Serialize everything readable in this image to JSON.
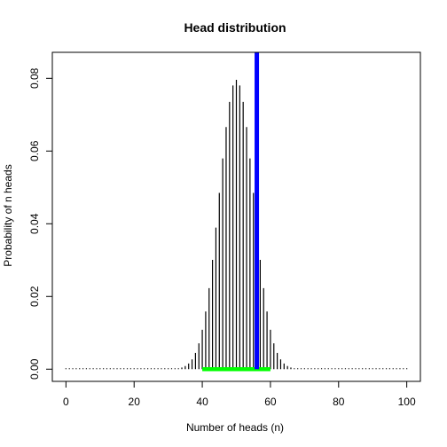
{
  "chart_data": {
    "type": "bar",
    "title": "Head distribution",
    "xlabel": "Number of heads (n)",
    "ylabel": "Probability of n heads",
    "xlim": [
      0,
      100
    ],
    "ylim": [
      0,
      0.08
    ],
    "x_ticks": [
      "0",
      "20",
      "40",
      "60",
      "80",
      "100"
    ],
    "y_ticks": [
      "0.00",
      "0.02",
      "0.04",
      "0.06",
      "0.08"
    ],
    "distribution": {
      "trials": 100,
      "p": 0.5
    },
    "highlight_line": {
      "x": 56,
      "color": "#0000ff"
    },
    "highlight_range": {
      "from": 40,
      "to": 60,
      "color": "#00ff00"
    },
    "bar_color": "#000000",
    "grid": false
  }
}
